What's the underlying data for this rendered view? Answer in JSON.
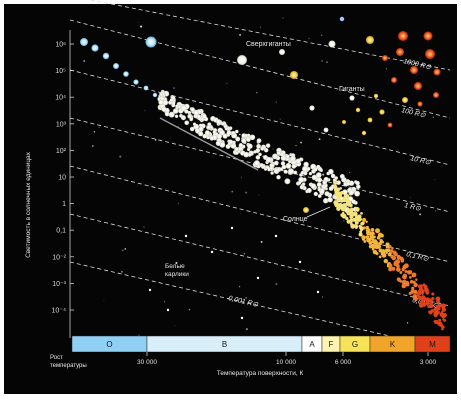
{
  "axes": {
    "ylabel": "Светимость в солнечных единицах",
    "xlabel": "Температура поверхности, К",
    "xlabel_left": "Рост температуры",
    "y_ticks": [
      "10⁶",
      "10⁵",
      "10⁴",
      "10³",
      "10²",
      "10",
      "1",
      "0,1",
      "10⁻²",
      "10⁻³",
      "10⁻⁴"
    ],
    "x_ticks": [
      "30 000",
      "10 000",
      "6 000",
      "3 000"
    ]
  },
  "spectral_classes": [
    {
      "label": "O",
      "color": "#8fd0f4"
    },
    {
      "label": "B",
      "color": "#d8eef9"
    },
    {
      "label": "A",
      "color": "#ffffff"
    },
    {
      "label": "F",
      "color": "#fff5b0"
    },
    {
      "label": "G",
      "color": "#f6e35a"
    },
    {
      "label": "K",
      "color": "#f0a52a"
    },
    {
      "label": "M",
      "color": "#e0401a"
    }
  ],
  "radius_lines": [
    "1000 R⊙",
    "100 R⊙",
    "10 R⊙",
    "1 R⊙",
    "0,1 R⊙",
    "0,01 R⊙",
    "0,001 R⊙"
  ],
  "regions": {
    "supergiants": "Сверхгиганты",
    "giants": "Гиганты",
    "sun": "Солнце",
    "white_dwarfs": "Белые карлики"
  },
  "colors": {
    "background": "#050505",
    "blue_star": "#bfe6f7",
    "red_star": "#e84a1c"
  }
}
